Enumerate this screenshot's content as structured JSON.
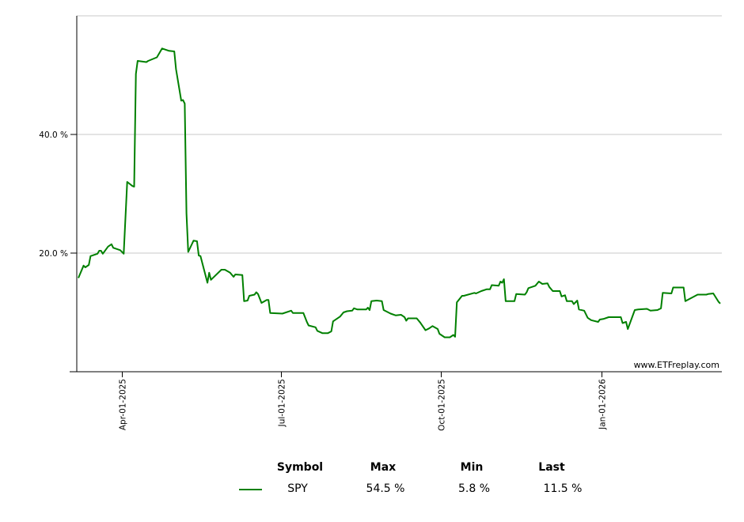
{
  "chart_data": {
    "type": "line",
    "title": "",
    "xlabel": "",
    "ylabel": "",
    "ylim": [
      0,
      60
    ],
    "xlim": [
      "2025-03-07",
      "2026-03-10"
    ],
    "grid": true,
    "y_ticks": [
      {
        "value": 20,
        "label": "20.0 %"
      },
      {
        "value": 40,
        "label": "40.0 %"
      }
    ],
    "x_ticks": [
      {
        "value": "2025-04-01",
        "label": "Apr-01-2025"
      },
      {
        "value": "2025-07-01",
        "label": "Jul-01-2025"
      },
      {
        "value": "2025-10-01",
        "label": "Oct-01-2025"
      },
      {
        "value": "2026-01-01",
        "label": "Jan-01-2026"
      }
    ],
    "watermark": "www.ETFreplay.com",
    "series": [
      {
        "name": "SPY",
        "color": "#008000",
        "points": [
          [
            "2025-03-07",
            15.8
          ],
          [
            "2025-03-10",
            17.9
          ],
          [
            "2025-03-11",
            17.6
          ],
          [
            "2025-03-13",
            18.0
          ],
          [
            "2025-03-14",
            19.5
          ],
          [
            "2025-03-18",
            19.9
          ],
          [
            "2025-03-19",
            20.4
          ],
          [
            "2025-03-20",
            20.4
          ],
          [
            "2025-03-21",
            19.9
          ],
          [
            "2025-03-24",
            21.1
          ],
          [
            "2025-03-26",
            21.5
          ],
          [
            "2025-03-27",
            20.9
          ],
          [
            "2025-03-31",
            20.5
          ],
          [
            "2025-04-02",
            19.9
          ],
          [
            "2025-04-04",
            32.0
          ],
          [
            "2025-04-07",
            31.3
          ],
          [
            "2025-04-08",
            31.2
          ],
          [
            "2025-04-09",
            50.2
          ],
          [
            "2025-04-10",
            52.4
          ],
          [
            "2025-04-15",
            52.2
          ],
          [
            "2025-04-16",
            52.4
          ],
          [
            "2025-04-21",
            53.0
          ],
          [
            "2025-04-24",
            54.5
          ],
          [
            "2025-04-28",
            54.1
          ],
          [
            "2025-05-01",
            54.0
          ],
          [
            "2025-05-02",
            51.0
          ],
          [
            "2025-05-05",
            45.7
          ],
          [
            "2025-05-06",
            45.8
          ],
          [
            "2025-05-07",
            45.2
          ],
          [
            "2025-05-08",
            26.7
          ],
          [
            "2025-05-09",
            20.2
          ],
          [
            "2025-05-12",
            22.1
          ],
          [
            "2025-05-14",
            22.0
          ],
          [
            "2025-05-15",
            19.6
          ],
          [
            "2025-05-16",
            19.5
          ],
          [
            "2025-05-20",
            15.0
          ],
          [
            "2025-05-21",
            16.7
          ],
          [
            "2025-05-22",
            15.5
          ],
          [
            "2025-05-28",
            17.2
          ],
          [
            "2025-05-30",
            17.2
          ],
          [
            "2025-06-02",
            16.7
          ],
          [
            "2025-06-04",
            16.0
          ],
          [
            "2025-06-05",
            16.4
          ],
          [
            "2025-06-09",
            16.3
          ],
          [
            "2025-06-10",
            11.9
          ],
          [
            "2025-06-12",
            12.0
          ],
          [
            "2025-06-13",
            12.8
          ],
          [
            "2025-06-16",
            13.0
          ],
          [
            "2025-06-17",
            13.4
          ],
          [
            "2025-06-18",
            13.1
          ],
          [
            "2025-06-20",
            11.6
          ],
          [
            "2025-06-23",
            12.1
          ],
          [
            "2025-06-24",
            12.1
          ],
          [
            "2025-06-25",
            9.9
          ],
          [
            "2025-07-02",
            9.8
          ],
          [
            "2025-07-07",
            10.3
          ],
          [
            "2025-07-08",
            9.9
          ],
          [
            "2025-07-14",
            9.9
          ],
          [
            "2025-07-16",
            8.4
          ],
          [
            "2025-07-17",
            7.8
          ],
          [
            "2025-07-21",
            7.5
          ],
          [
            "2025-07-22",
            6.9
          ],
          [
            "2025-07-25",
            6.5
          ],
          [
            "2025-07-28",
            6.5
          ],
          [
            "2025-07-30",
            6.8
          ],
          [
            "2025-07-31",
            8.5
          ],
          [
            "2025-08-04",
            9.3
          ],
          [
            "2025-08-06",
            10.0
          ],
          [
            "2025-08-08",
            10.2
          ],
          [
            "2025-08-11",
            10.3
          ],
          [
            "2025-08-12",
            10.7
          ],
          [
            "2025-08-14",
            10.5
          ],
          [
            "2025-08-19",
            10.5
          ],
          [
            "2025-08-20",
            10.8
          ],
          [
            "2025-08-21",
            10.4
          ],
          [
            "2025-08-22",
            11.9
          ],
          [
            "2025-08-25",
            12.0
          ],
          [
            "2025-08-28",
            11.9
          ],
          [
            "2025-08-29",
            10.4
          ],
          [
            "2025-09-02",
            9.8
          ],
          [
            "2025-09-05",
            9.5
          ],
          [
            "2025-09-08",
            9.6
          ],
          [
            "2025-09-10",
            9.2
          ],
          [
            "2025-09-11",
            8.6
          ],
          [
            "2025-09-12",
            9.0
          ],
          [
            "2025-09-17",
            9.0
          ],
          [
            "2025-09-19",
            8.3
          ],
          [
            "2025-09-22",
            7.0
          ],
          [
            "2025-09-24",
            7.3
          ],
          [
            "2025-09-26",
            7.7
          ],
          [
            "2025-09-29",
            7.2
          ],
          [
            "2025-09-30",
            6.4
          ],
          [
            "2025-10-03",
            5.8
          ],
          [
            "2025-10-06",
            5.8
          ],
          [
            "2025-10-08",
            6.2
          ],
          [
            "2025-10-09",
            5.9
          ],
          [
            "2025-10-10",
            11.7
          ],
          [
            "2025-10-13",
            12.8
          ],
          [
            "2025-10-14",
            12.8
          ],
          [
            "2025-10-20",
            13.3
          ],
          [
            "2025-10-21",
            13.2
          ],
          [
            "2025-10-24",
            13.6
          ],
          [
            "2025-10-27",
            13.9
          ],
          [
            "2025-10-29",
            13.9
          ],
          [
            "2025-10-30",
            14.6
          ],
          [
            "2025-11-03",
            14.5
          ],
          [
            "2025-11-04",
            15.2
          ],
          [
            "2025-11-05",
            15.0
          ],
          [
            "2025-11-06",
            15.6
          ],
          [
            "2025-11-07",
            11.9
          ],
          [
            "2025-11-12",
            11.9
          ],
          [
            "2025-11-13",
            13.1
          ],
          [
            "2025-11-18",
            13.0
          ],
          [
            "2025-11-19",
            13.4
          ],
          [
            "2025-11-20",
            14.1
          ],
          [
            "2025-11-24",
            14.5
          ],
          [
            "2025-11-26",
            15.2
          ],
          [
            "2025-11-28",
            14.8
          ],
          [
            "2025-12-01",
            14.9
          ],
          [
            "2025-12-02",
            14.3
          ],
          [
            "2025-12-04",
            13.6
          ],
          [
            "2025-12-08",
            13.6
          ],
          [
            "2025-12-09",
            12.7
          ],
          [
            "2025-12-11",
            12.9
          ],
          [
            "2025-12-12",
            11.9
          ],
          [
            "2025-12-15",
            11.9
          ],
          [
            "2025-12-16",
            11.4
          ],
          [
            "2025-12-18",
            12.0
          ],
          [
            "2025-12-19",
            10.5
          ],
          [
            "2025-12-22",
            10.3
          ],
          [
            "2025-12-24",
            9.1
          ],
          [
            "2025-12-26",
            8.7
          ],
          [
            "2025-12-30",
            8.4
          ],
          [
            "2025-12-31",
            8.8
          ],
          [
            "2026-01-02",
            8.9
          ],
          [
            "2026-01-05",
            9.2
          ],
          [
            "2026-01-12",
            9.2
          ],
          [
            "2026-01-13",
            8.2
          ],
          [
            "2026-01-15",
            8.4
          ],
          [
            "2026-01-16",
            7.2
          ],
          [
            "2026-01-20",
            10.4
          ],
          [
            "2026-01-22",
            10.5
          ],
          [
            "2026-01-27",
            10.6
          ],
          [
            "2026-01-29",
            10.3
          ],
          [
            "2026-02-02",
            10.4
          ],
          [
            "2026-02-04",
            10.7
          ],
          [
            "2026-02-05",
            13.3
          ],
          [
            "2026-02-10",
            13.2
          ],
          [
            "2026-02-11",
            14.2
          ],
          [
            "2026-02-17",
            14.2
          ],
          [
            "2026-02-18",
            11.9
          ],
          [
            "2026-02-25",
            13.0
          ],
          [
            "2026-03-02",
            13.0
          ],
          [
            "2026-03-03",
            13.1
          ],
          [
            "2026-03-06",
            13.2
          ],
          [
            "2026-03-09",
            11.8
          ],
          [
            "2026-03-10",
            11.5
          ]
        ]
      }
    ]
  },
  "legend": {
    "headers": {
      "symbol": "Symbol",
      "max": "Max",
      "min": "Min",
      "last": "Last"
    },
    "rows": [
      {
        "symbol": "SPY",
        "max": "54.5 %",
        "min": "5.8 %",
        "last": "11.5 %",
        "color": "#008000"
      }
    ]
  }
}
